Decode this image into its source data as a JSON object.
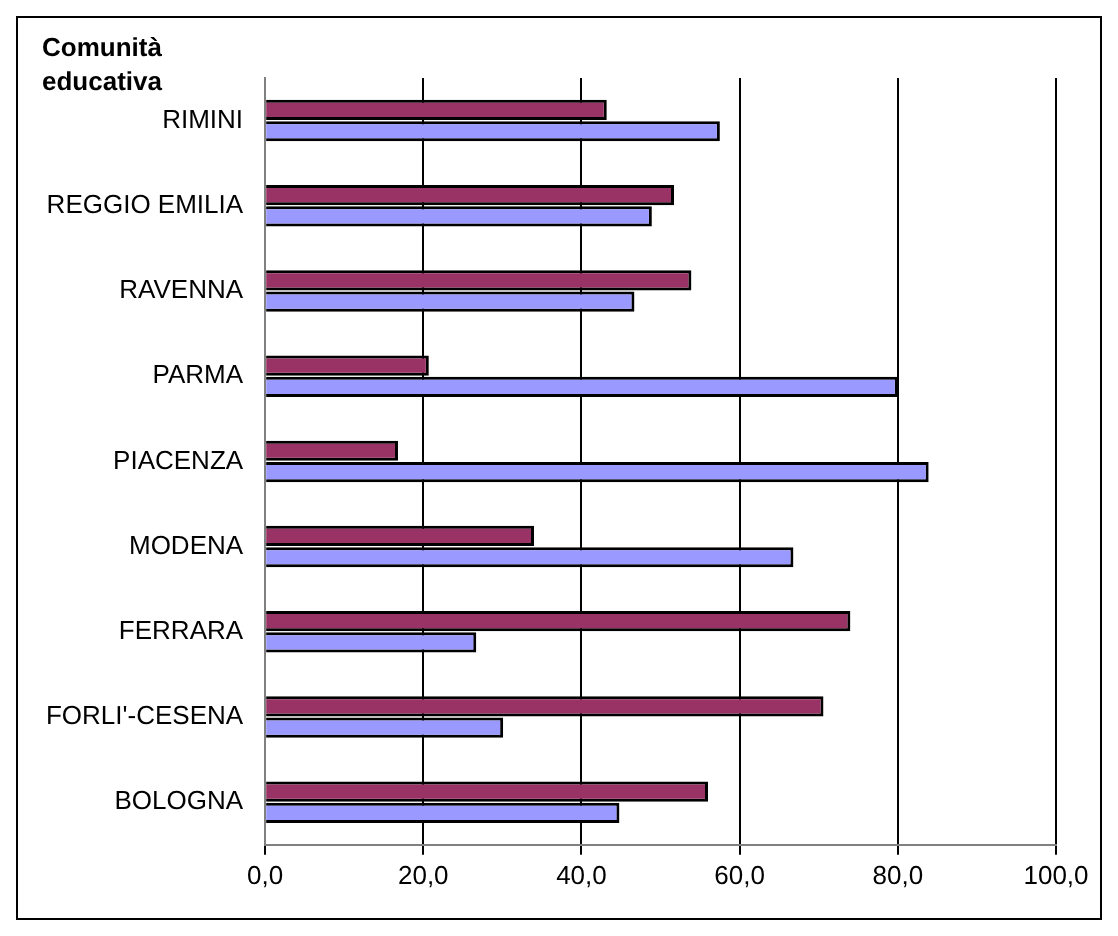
{
  "chart_data": {
    "type": "bar",
    "orientation": "horizontal",
    "title": "Comunità educativa",
    "categories": [
      "RIMINI",
      "REGGIO EMILIA",
      "RAVENNA",
      "PARMA",
      "PIACENZA",
      "MODENA",
      "FERRARA",
      "FORLI'-CESENA",
      "BOLOGNA"
    ],
    "series": [
      {
        "color": "#993366",
        "values": [
          43.2,
          51.7,
          53.9,
          20.7,
          16.8,
          34.0,
          74.0,
          70.6,
          56.0
        ]
      },
      {
        "color": "#9999ff",
        "values": [
          57.5,
          48.9,
          46.7,
          80.0,
          83.9,
          66.8,
          26.7,
          30.1,
          44.8
        ]
      }
    ],
    "xlim": [
      0,
      100
    ],
    "xticks": [
      {
        "value": 0,
        "label": "0,0"
      },
      {
        "value": 20,
        "label": "20,0"
      },
      {
        "value": 40,
        "label": "40,0"
      },
      {
        "value": 60,
        "label": "60,0"
      },
      {
        "value": 80,
        "label": "80,0"
      },
      {
        "value": 100,
        "label": "100,0"
      }
    ],
    "grid": "x",
    "legend": false
  }
}
